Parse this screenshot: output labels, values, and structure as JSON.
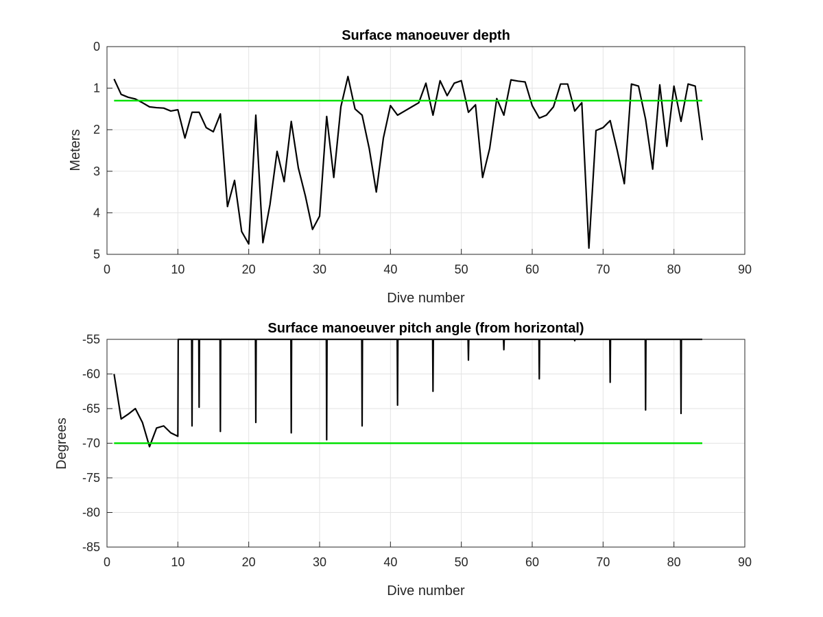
{
  "chart_data": [
    {
      "type": "line",
      "title": "Surface manoeuver depth",
      "xlabel": "Dive number",
      "ylabel": "Meters",
      "xlim": [
        0,
        90
      ],
      "ylim": [
        0,
        5
      ],
      "y_reversed": true,
      "grid": true,
      "xticks": [
        "0",
        "10",
        "20",
        "30",
        "40",
        "50",
        "60",
        "70",
        "80",
        "90"
      ],
      "yticks": [
        "0",
        "1",
        "2",
        "3",
        "4",
        "5"
      ],
      "series": [
        {
          "color": "#000000",
          "x": [
            1,
            2,
            3,
            4,
            5,
            6,
            7,
            8,
            9,
            10,
            11,
            12,
            13,
            14,
            15,
            16,
            17,
            18,
            19,
            20,
            21,
            22,
            23,
            24,
            25,
            26,
            27,
            28,
            29,
            30,
            31,
            32,
            33,
            34,
            35,
            36,
            37,
            38,
            39,
            40,
            41,
            42,
            43,
            44,
            45,
            46,
            47,
            48,
            49,
            50,
            51,
            52,
            53,
            54,
            55,
            56,
            57,
            58,
            59,
            60,
            61,
            62,
            63,
            64,
            65,
            66,
            67,
            68,
            69,
            70,
            71,
            72,
            73,
            74,
            75,
            76,
            77,
            78,
            79,
            80,
            81,
            82,
            83,
            84
          ],
          "y": [
            0.78,
            1.15,
            1.22,
            1.26,
            1.35,
            1.45,
            1.47,
            1.48,
            1.55,
            1.52,
            2.2,
            1.58,
            1.58,
            1.95,
            2.05,
            1.62,
            3.85,
            3.22,
            4.45,
            4.75,
            1.65,
            4.72,
            3.8,
            2.52,
            3.25,
            1.8,
            2.92,
            3.6,
            4.4,
            4.08,
            1.68,
            3.15,
            1.45,
            0.72,
            1.5,
            1.65,
            2.45,
            3.5,
            2.2,
            1.42,
            1.65,
            1.55,
            1.45,
            1.35,
            0.88,
            1.65,
            0.82,
            1.18,
            0.88,
            0.82,
            1.58,
            1.4,
            3.15,
            2.45,
            1.25,
            1.65,
            0.8,
            0.83,
            0.85,
            1.42,
            1.72,
            1.65,
            1.45,
            0.9,
            0.9,
            1.55,
            1.35,
            4.85,
            2.02,
            1.95,
            1.78,
            2.5,
            3.3,
            0.9,
            0.95,
            1.75,
            2.95,
            0.92,
            2.4,
            0.95,
            1.8,
            0.9,
            0.95,
            2.25
          ]
        },
        {
          "color": "#00e000",
          "x": [
            1,
            84
          ],
          "y": [
            1.3,
            1.3
          ]
        }
      ]
    },
    {
      "type": "line",
      "title": "Surface manoeuver pitch angle (from horizontal)",
      "xlabel": "Dive number",
      "ylabel": "Degrees",
      "xlim": [
        0,
        90
      ],
      "ylim": [
        -85,
        -55
      ],
      "grid": true,
      "xticks": [
        "0",
        "10",
        "20",
        "30",
        "40",
        "50",
        "60",
        "70",
        "80",
        "90"
      ],
      "yticks": [
        "-55",
        "-60",
        "-65",
        "-70",
        "-75",
        "-80",
        "-85"
      ],
      "series": [
        {
          "color": "#000000",
          "x": [
            1,
            2,
            3,
            4,
            5,
            6,
            7,
            8,
            9,
            10,
            10.05,
            11,
            11.95,
            12,
            12.05,
            12.95,
            13,
            13.05,
            15.95,
            16,
            16.05,
            20.95,
            21,
            21.05,
            25.95,
            26,
            26.05,
            30.95,
            31,
            31.05,
            35.95,
            36,
            36.05,
            40.95,
            41,
            41.05,
            45.95,
            46,
            46.05,
            50.95,
            51,
            51.05,
            55.95,
            56,
            56.05,
            60.95,
            61,
            61.05,
            65.95,
            66,
            66.05,
            70.95,
            71,
            71.05,
            75.95,
            76,
            76.05,
            80.95,
            81,
            81.05,
            84
          ],
          "y": [
            -60,
            -66.5,
            -65.8,
            -65,
            -67,
            -70.5,
            -67.8,
            -67.5,
            -68.5,
            -69,
            -55,
            -55,
            -55,
            -67.5,
            -55,
            -55,
            -64.8,
            -55,
            -55,
            -68.3,
            -55,
            -55,
            -67,
            -55,
            -55,
            -68.5,
            -55,
            -55,
            -69.5,
            -55,
            -55,
            -67.5,
            -55,
            -55,
            -64.5,
            -55,
            -55,
            -62.5,
            -55,
            -55,
            -58,
            -55,
            -55,
            -56.5,
            -55,
            -55,
            -60.7,
            -55,
            -55,
            -55.2,
            -55,
            -55,
            -61.2,
            -55,
            -55,
            -65.2,
            -55,
            -55,
            -65.7,
            -55,
            -55
          ]
        },
        {
          "color": "#00e000",
          "x": [
            1,
            84
          ],
          "y": [
            -70,
            -70
          ]
        }
      ]
    }
  ]
}
